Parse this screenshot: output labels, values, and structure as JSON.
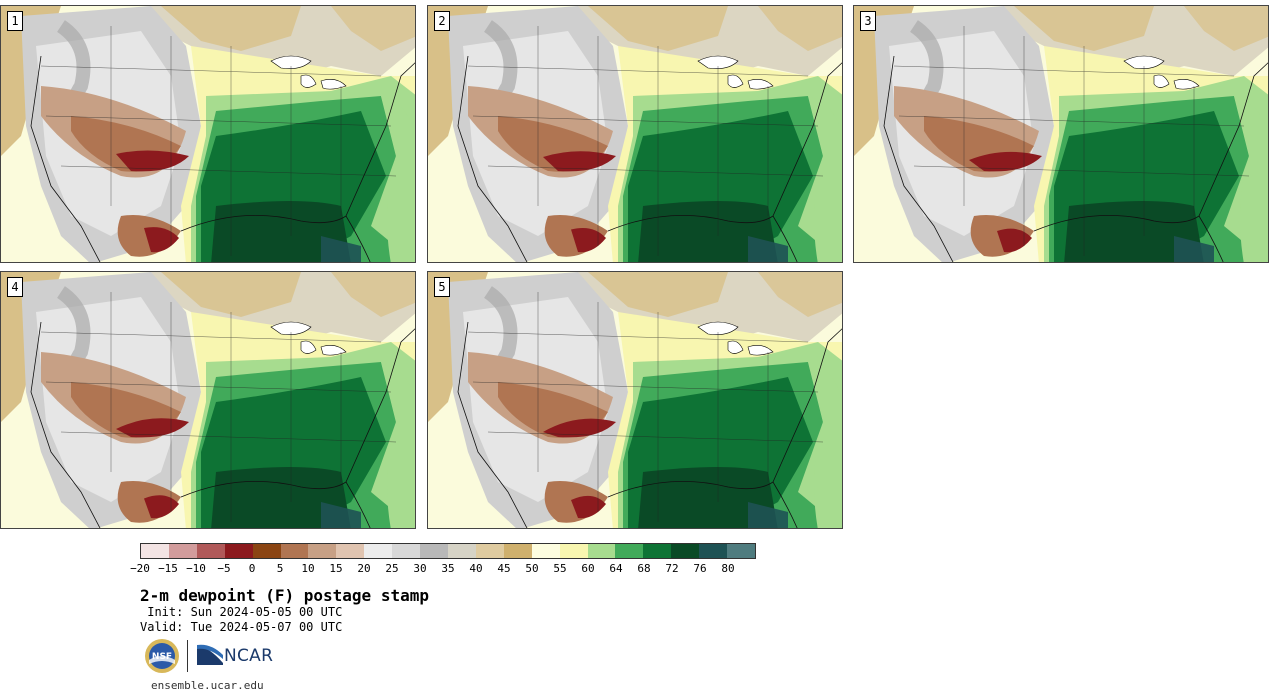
{
  "panels": [
    {
      "label": "1"
    },
    {
      "label": "2"
    },
    {
      "label": "3"
    },
    {
      "label": "4"
    },
    {
      "label": "5"
    }
  ],
  "colorbar": {
    "colors": [
      "#f3e4e4",
      "#d29c9c",
      "#b05959",
      "#8c1a1e",
      "#8b4513",
      "#b07552",
      "#c7a085",
      "#e0c4b0",
      "#ececec",
      "#d8d8d8",
      "#b8b8b8",
      "#d6d3c6",
      "#dfcba0",
      "#cfb06d",
      "#fdfde0",
      "#f8f6b0",
      "#a7dc8f",
      "#41aa5a",
      "#0e7335",
      "#0a4a26",
      "#1e5254",
      "#4f7c7f"
    ],
    "tick_labels": [
      "−20",
      "−15",
      "−10",
      "−5",
      "0",
      "5",
      "10",
      "15",
      "20",
      "25",
      "30",
      "35",
      "40",
      "45",
      "50",
      "55",
      "60",
      "64",
      "68",
      "72",
      "76",
      "80"
    ]
  },
  "title": "2-m dewpoint (F) postage stamp",
  "init": " Init: Sun 2024-05-05 00 UTC",
  "valid": "Valid: Tue 2024-05-07 00 UTC",
  "logos": {
    "ncar_text": "NCAR",
    "nsf_text": "NSF"
  },
  "site": "ensemble.ucar.edu"
}
